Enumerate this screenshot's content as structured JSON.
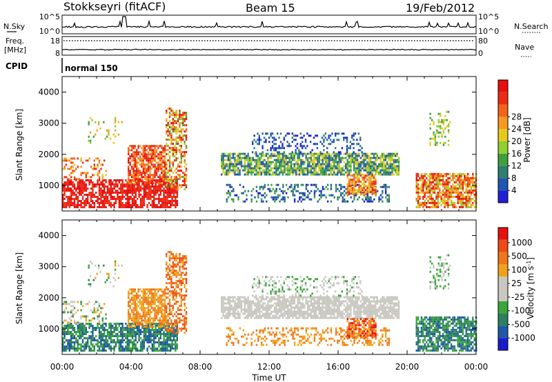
{
  "header": {
    "station": "Stokkseyri (fitACF)",
    "beam": "Beam 15",
    "date": "19/Feb/2012"
  },
  "noise_panel": {
    "left_label": "N.Sky",
    "right_label": "N.Search",
    "left_ticks": [
      "10^5",
      "10^0"
    ],
    "right_ticks": [
      "10^5",
      "10^0"
    ]
  },
  "freq_panel": {
    "left_label_line1": "Freq.",
    "left_label_line2": "[MHz]",
    "right_label": "Nave",
    "left_ticks": [
      "18",
      "8"
    ],
    "right_ticks": [
      "80",
      "0"
    ]
  },
  "cpid_panel": {
    "label": "CPID",
    "mode_text": "normal 150"
  },
  "chart_data": [
    {
      "type": "heatmap",
      "name": "power",
      "ylabel": "Slant Range [km]",
      "ylim": [
        180,
        4500
      ],
      "yticks": [
        1000,
        2000,
        3000,
        4000
      ],
      "xlim": [
        0,
        24
      ],
      "colorbar": {
        "label": "Power [dB]",
        "ticks": [
          "4",
          "8",
          "12",
          "16",
          "20",
          "24",
          "28"
        ],
        "colors": [
          "#1f1fd6",
          "#1f56b0",
          "#2f7f6f",
          "#3f9f3f",
          "#8fcf2f",
          "#e6c81f",
          "#f59a1f",
          "#f2641a",
          "#ee2a14",
          "#e60f0f"
        ]
      }
    },
    {
      "type": "heatmap",
      "name": "velocity",
      "ylabel": "Slant Range [km]",
      "ylim": [
        180,
        4500
      ],
      "yticks": [
        1000,
        2000,
        3000,
        4000
      ],
      "xlim": [
        0,
        24
      ],
      "colorbar": {
        "label": "Velocity [m s^-1]",
        "ticks": [
          "1000",
          "500",
          "100",
          "25",
          "-25",
          "-100",
          "-500",
          "-1000"
        ],
        "colors": [
          "#1a1acc",
          "#1f58a8",
          "#2d7f5f",
          "#3aa53a",
          "#c8c8c0",
          "#c8c8c0",
          "#f0a31a",
          "#f0761a",
          "#ee4a18",
          "#e61010"
        ]
      }
    }
  ],
  "time_axis": {
    "label": "Time UT",
    "ticks": [
      "00:00",
      "04:00",
      "08:00",
      "12:00",
      "16:00",
      "20:00",
      "00:00"
    ]
  }
}
